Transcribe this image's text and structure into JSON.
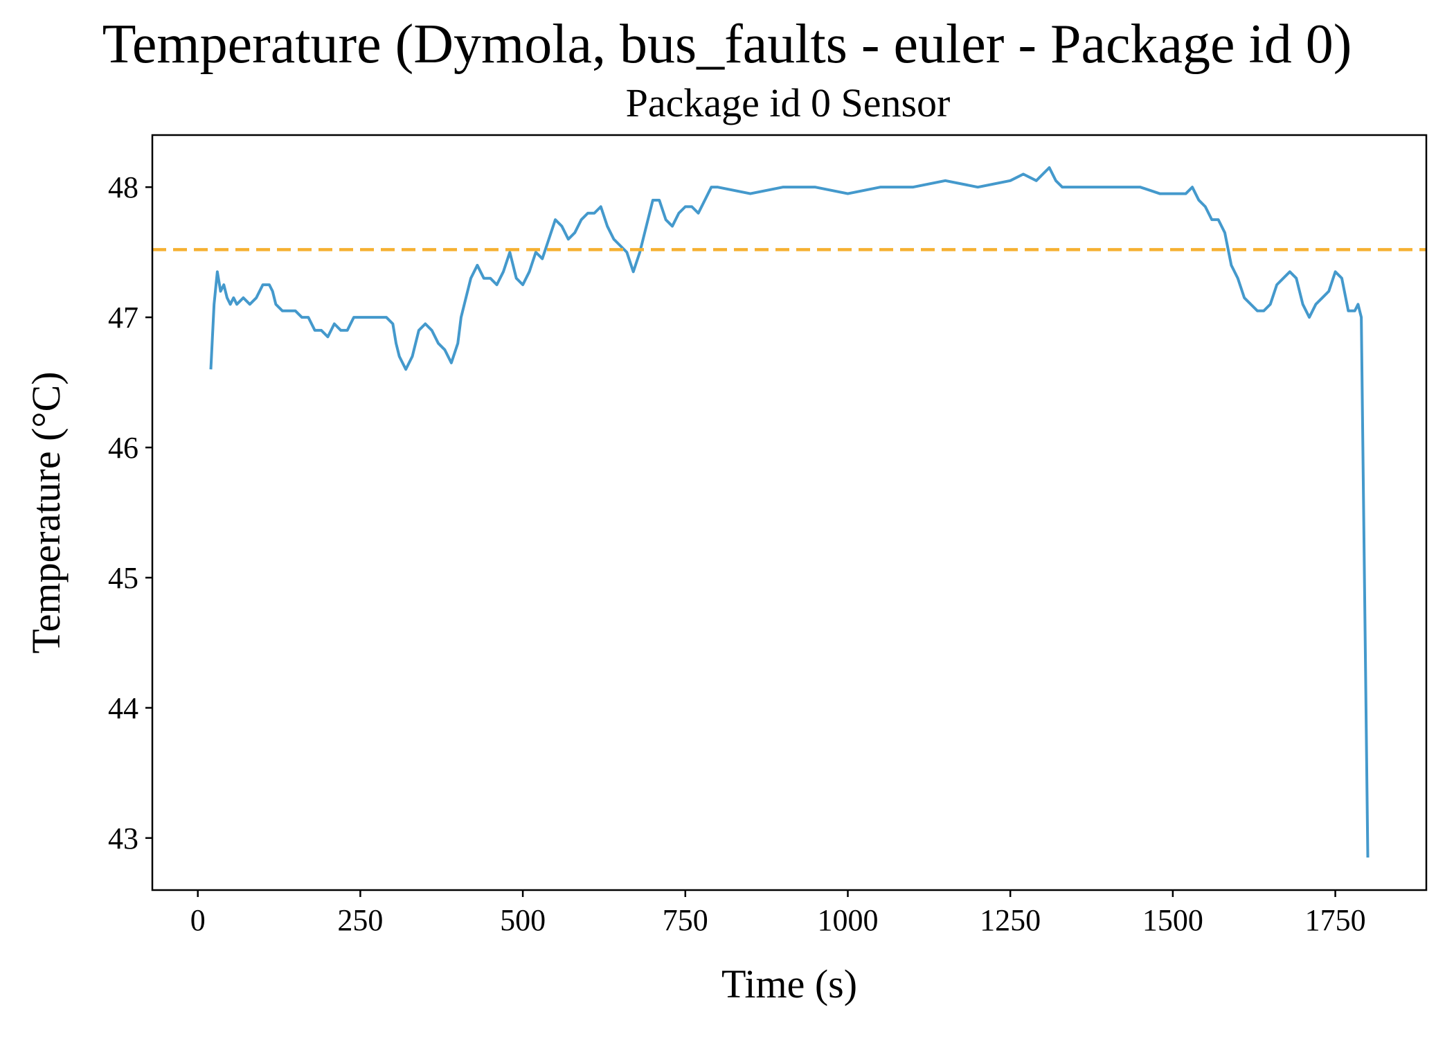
{
  "chart_data": {
    "type": "line",
    "title": "Temperature (Dymola, bus_faults - euler - Package id 0)",
    "subtitle": "Package id 0 Sensor",
    "xlabel": "Time (s)",
    "ylabel": "Temperature (°C)",
    "xlim": [
      -70,
      1890
    ],
    "ylim": [
      42.6,
      48.4
    ],
    "xticks": [
      0,
      250,
      500,
      750,
      1000,
      1250,
      1500,
      1750
    ],
    "xtick_labels": [
      "0",
      "250",
      "500",
      "750",
      "1000",
      "1250",
      "1500",
      "1750"
    ],
    "yticks": [
      43,
      44,
      45,
      46,
      47,
      48
    ],
    "ytick_labels": [
      "43",
      "44",
      "45",
      "46",
      "47",
      "48"
    ],
    "grid": false,
    "series": [
      {
        "color": "#4499cc",
        "style": "solid",
        "x": [
          20,
          25,
          30,
          35,
          40,
          45,
          50,
          55,
          60,
          70,
          80,
          90,
          100,
          110,
          115,
          120,
          130,
          140,
          150,
          160,
          170,
          180,
          190,
          200,
          210,
          220,
          230,
          240,
          250,
          260,
          270,
          280,
          290,
          300,
          305,
          310,
          320,
          330,
          340,
          350,
          360,
          370,
          380,
          390,
          400,
          405,
          410,
          420,
          430,
          440,
          450,
          460,
          470,
          480,
          490,
          500,
          510,
          520,
          530,
          540,
          550,
          560,
          570,
          580,
          590,
          600,
          610,
          620,
          630,
          640,
          650,
          660,
          670,
          680,
          690,
          700,
          710,
          720,
          730,
          740,
          750,
          760,
          770,
          780,
          790,
          800,
          850,
          900,
          950,
          1000,
          1050,
          1100,
          1150,
          1200,
          1250,
          1270,
          1290,
          1300,
          1310,
          1320,
          1330,
          1340,
          1400,
          1450,
          1480,
          1500,
          1510,
          1520,
          1530,
          1540,
          1550,
          1560,
          1570,
          1580,
          1590,
          1600,
          1610,
          1620,
          1630,
          1640,
          1650,
          1660,
          1670,
          1680,
          1690,
          1700,
          1710,
          1720,
          1730,
          1740,
          1750,
          1760,
          1770,
          1780,
          1785,
          1790,
          1800
        ],
        "y": [
          46.6,
          47.1,
          47.35,
          47.2,
          47.25,
          47.15,
          47.1,
          47.15,
          47.1,
          47.15,
          47.1,
          47.15,
          47.25,
          47.25,
          47.2,
          47.1,
          47.05,
          47.05,
          47.05,
          47.0,
          47.0,
          46.9,
          46.9,
          46.85,
          46.95,
          46.9,
          46.9,
          47.0,
          47.0,
          47.0,
          47.0,
          47.0,
          47.0,
          46.95,
          46.8,
          46.7,
          46.6,
          46.7,
          46.9,
          46.95,
          46.9,
          46.8,
          46.75,
          46.65,
          46.8,
          47.0,
          47.1,
          47.3,
          47.4,
          47.3,
          47.3,
          47.25,
          47.35,
          47.5,
          47.3,
          47.25,
          47.35,
          47.5,
          47.45,
          47.6,
          47.75,
          47.7,
          47.6,
          47.65,
          47.75,
          47.8,
          47.8,
          47.85,
          47.7,
          47.6,
          47.55,
          47.5,
          47.35,
          47.5,
          47.7,
          47.9,
          47.9,
          47.75,
          47.7,
          47.8,
          47.85,
          47.85,
          47.8,
          47.9,
          48.0,
          48.0,
          47.95,
          48.0,
          48.0,
          47.95,
          48.0,
          48.0,
          48.05,
          48.0,
          48.05,
          48.1,
          48.05,
          48.1,
          48.15,
          48.05,
          48.0,
          48.0,
          48.0,
          48.0,
          47.95,
          47.95,
          47.95,
          47.95,
          48.0,
          47.9,
          47.85,
          47.75,
          47.75,
          47.65,
          47.4,
          47.3,
          47.15,
          47.1,
          47.05,
          47.05,
          47.1,
          47.25,
          47.3,
          47.35,
          47.3,
          47.1,
          47.0,
          47.1,
          47.15,
          47.2,
          47.35,
          47.3,
          47.05,
          47.05,
          47.1,
          47.0,
          42.85
        ]
      },
      {
        "color": "#f5b031",
        "style": "dashed",
        "x": [
          -70,
          1890
        ],
        "y": [
          47.52,
          47.52
        ]
      }
    ]
  }
}
